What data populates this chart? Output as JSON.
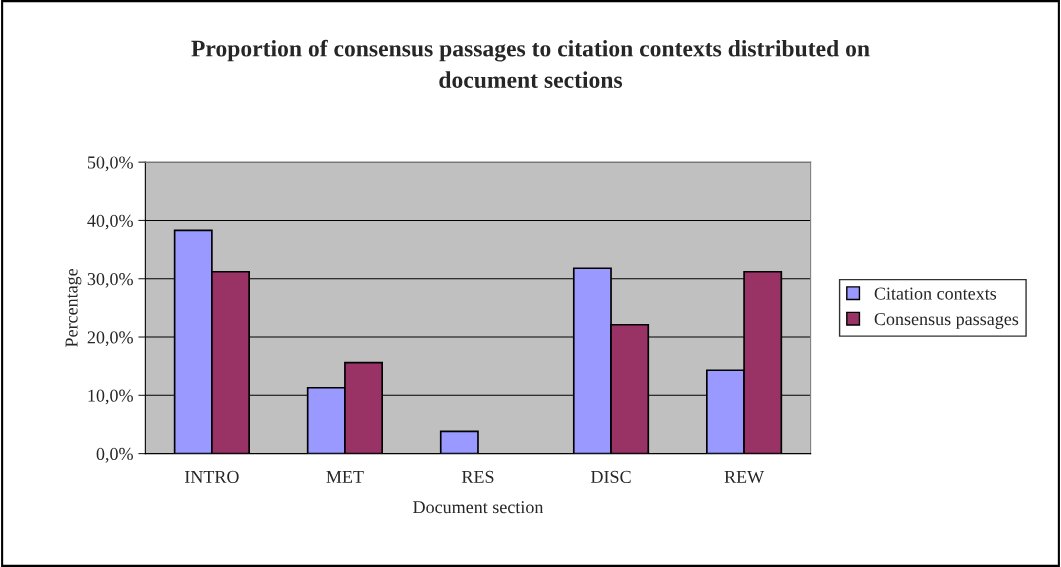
{
  "chart_data": {
    "type": "bar",
    "title": "Proportion of consensus passages to citation contexts distributed on document sections",
    "xlabel": "Document section",
    "ylabel": "Percentage",
    "categories": [
      "INTRO",
      "MET",
      "RES",
      "DISC",
      "REW"
    ],
    "series": [
      {
        "name": "Citation contexts",
        "color": "#9999ff",
        "values": [
          38.3,
          11.3,
          3.8,
          31.8,
          14.3
        ]
      },
      {
        "name": "Consensus passages",
        "color": "#993366",
        "values": [
          31.2,
          15.6,
          null,
          22.1,
          31.2
        ]
      }
    ],
    "ylim": [
      0,
      50
    ],
    "yticks": [
      {
        "value": 0,
        "label": "0,0%"
      },
      {
        "value": 10,
        "label": "10,0%"
      },
      {
        "value": 20,
        "label": "20,0%"
      },
      {
        "value": 30,
        "label": "30,0%"
      },
      {
        "value": 40,
        "label": "40,0%"
      },
      {
        "value": 50,
        "label": "50,0%"
      }
    ],
    "grid": "y",
    "legend": "right"
  }
}
